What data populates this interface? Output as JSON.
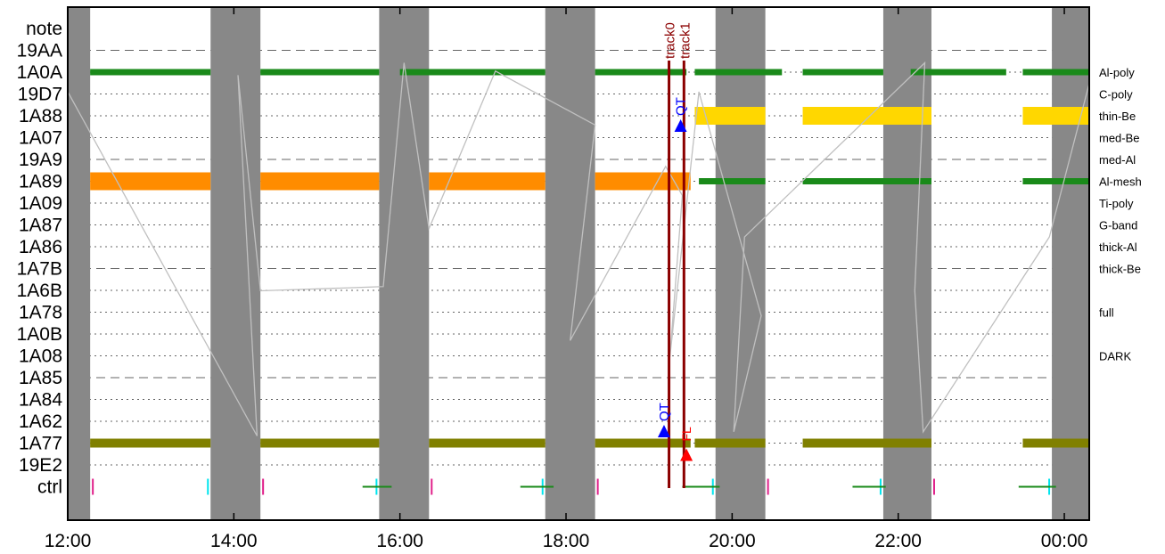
{
  "chart_data": {
    "type": "timeline",
    "rows": [
      {
        "left": "note",
        "right": "",
        "grid": "none"
      },
      {
        "left": "19AA",
        "right": "",
        "grid": "dash"
      },
      {
        "left": "1A0A",
        "right": "Al-poly",
        "grid": "dot"
      },
      {
        "left": "19D7",
        "right": "C-poly",
        "grid": "dot"
      },
      {
        "left": "1A88",
        "right": "thin-Be",
        "grid": "dot"
      },
      {
        "left": "1A07",
        "right": "med-Be",
        "grid": "dot"
      },
      {
        "left": "19A9",
        "right": "med-Al",
        "grid": "dash"
      },
      {
        "left": "1A89",
        "right": "Al-mesh",
        "grid": "dot"
      },
      {
        "left": "1A09",
        "right": "Ti-poly",
        "grid": "dot"
      },
      {
        "left": "1A87",
        "right": "G-band",
        "grid": "dot"
      },
      {
        "left": "1A86",
        "right": "thick-Al",
        "grid": "dot"
      },
      {
        "left": "1A7B",
        "right": "thick-Be",
        "grid": "dash"
      },
      {
        "left": "1A6B",
        "right": "",
        "grid": "dot"
      },
      {
        "left": "1A78",
        "right": "full",
        "grid": "dot"
      },
      {
        "left": "1A0B",
        "right": "",
        "grid": "dot"
      },
      {
        "left": "1A08",
        "right": "DARK",
        "grid": "dot"
      },
      {
        "left": "1A85",
        "right": "",
        "grid": "dash"
      },
      {
        "left": "1A84",
        "right": "",
        "grid": "dot"
      },
      {
        "left": "1A62",
        "right": "",
        "grid": "dot"
      },
      {
        "left": "1A77",
        "right": "",
        "grid": "dot"
      },
      {
        "left": "19E2",
        "right": "",
        "grid": "dot"
      },
      {
        "left": "ctrl",
        "right": "",
        "grid": "none"
      }
    ],
    "x_ticks": [
      "12:00",
      "14:00",
      "16:00",
      "18:00",
      "20:00",
      "22:00",
      "00:00"
    ],
    "x_tick_hours": [
      12,
      14,
      16,
      18,
      20,
      22,
      24
    ],
    "x_range": [
      12,
      24.3
    ],
    "gray_bands": [
      [
        12,
        12.27
      ],
      [
        13.72,
        14.32
      ],
      [
        15.75,
        16.35
      ],
      [
        17.75,
        18.35
      ],
      [
        19.8,
        20.4
      ],
      [
        21.82,
        22.4
      ],
      [
        23.85,
        24.45
      ]
    ],
    "colors": {
      "band": "#888888",
      "green": "#1a8a1a",
      "orange": "#ff8c00",
      "yellow": "#ffd700",
      "olive": "#808000",
      "track": "#8b0000",
      "qt": "#0000ff",
      "flare": "#ff0000",
      "ramp": "#c0c0c0",
      "ctrl_cyan": "#00e5ee",
      "ctrl_magenta": "#e0208a",
      "ctrl_green": "#1a8a1a"
    },
    "segments": [
      {
        "row": "1A0A",
        "style": "green",
        "ranges": [
          [
            12.27,
            13.72
          ],
          [
            14.32,
            15.75
          ],
          [
            16.0,
            17.75
          ],
          [
            18.35,
            19.45
          ],
          [
            19.55,
            20.6
          ],
          [
            20.85,
            21.82
          ],
          [
            22.15,
            23.3
          ],
          [
            23.5,
            24.45
          ]
        ]
      },
      {
        "row": "1A88",
        "style": "yellow",
        "ranges": [
          [
            19.55,
            20.4
          ],
          [
            20.85,
            22.4
          ],
          [
            23.5,
            24.45
          ]
        ]
      },
      {
        "row": "1A89",
        "style": "orange",
        "ranges": [
          [
            12.27,
            13.72
          ],
          [
            14.32,
            15.75
          ],
          [
            16.35,
            17.75
          ],
          [
            18.35,
            19.5
          ]
        ]
      },
      {
        "row": "1A89",
        "style": "green",
        "ranges": [
          [
            19.6,
            20.4
          ],
          [
            20.85,
            22.4
          ],
          [
            23.5,
            24.45
          ]
        ]
      },
      {
        "row": "1A77",
        "style": "olive",
        "ranges": [
          [
            12.27,
            13.72
          ],
          [
            14.32,
            15.75
          ],
          [
            16.35,
            17.75
          ],
          [
            18.35,
            19.5
          ],
          [
            19.55,
            20.4
          ],
          [
            20.85,
            22.4
          ],
          [
            23.5,
            24.45
          ]
        ]
      }
    ],
    "tracks": [
      {
        "name": "track0",
        "hour": 19.24
      },
      {
        "name": "track1",
        "hour": 19.42
      }
    ],
    "annotations": [
      {
        "label": "QT",
        "hour": 19.38,
        "row": "1A88",
        "type": "qt"
      },
      {
        "label": "QT",
        "hour": 19.18,
        "row": "1A62",
        "type": "qt"
      },
      {
        "label": "FL",
        "hour": 19.45,
        "row": "1A77",
        "type": "flare"
      }
    ],
    "ramp_points": [
      [
        12.0,
        0.9
      ],
      [
        14.28,
        0.07
      ],
      [
        14.05,
        0.94
      ],
      [
        14.32,
        0.42
      ],
      [
        15.8,
        0.43
      ],
      [
        16.05,
        0.97
      ],
      [
        16.35,
        0.57
      ],
      [
        17.15,
        0.95
      ],
      [
        18.35,
        0.82
      ],
      [
        18.05,
        0.3
      ],
      [
        19.2,
        0.72
      ],
      [
        19.4,
        0.65
      ],
      [
        19.25,
        0.26
      ],
      [
        19.6,
        0.9
      ],
      [
        20.35,
        0.36
      ],
      [
        20.02,
        0.08
      ],
      [
        20.15,
        0.55
      ],
      [
        22.32,
        0.97
      ],
      [
        22.2,
        0.42
      ],
      [
        22.3,
        0.08
      ],
      [
        23.82,
        0.55
      ],
      [
        24.4,
        0.92
      ]
    ]
  }
}
